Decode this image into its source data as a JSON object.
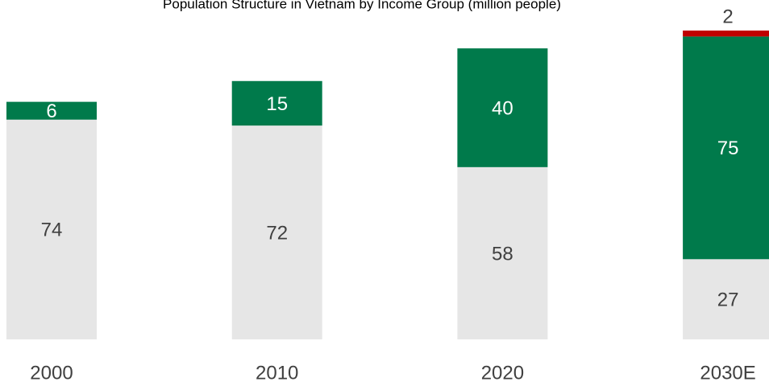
{
  "chart_data": {
    "type": "stacked_bar",
    "title": "Population Structure in Vietnam by Income Group (million people)",
    "categories": [
      "2000",
      "2010",
      "2020",
      "2030E"
    ],
    "series": [
      {
        "color": "#e6e6e6",
        "values": [
          74,
          72,
          58,
          27
        ]
      },
      {
        "color": "#007a4b",
        "values": [
          6,
          15,
          40,
          75
        ]
      },
      {
        "color": "#c00000",
        "values": [
          null,
          null,
          null,
          2
        ]
      }
    ]
  }
}
